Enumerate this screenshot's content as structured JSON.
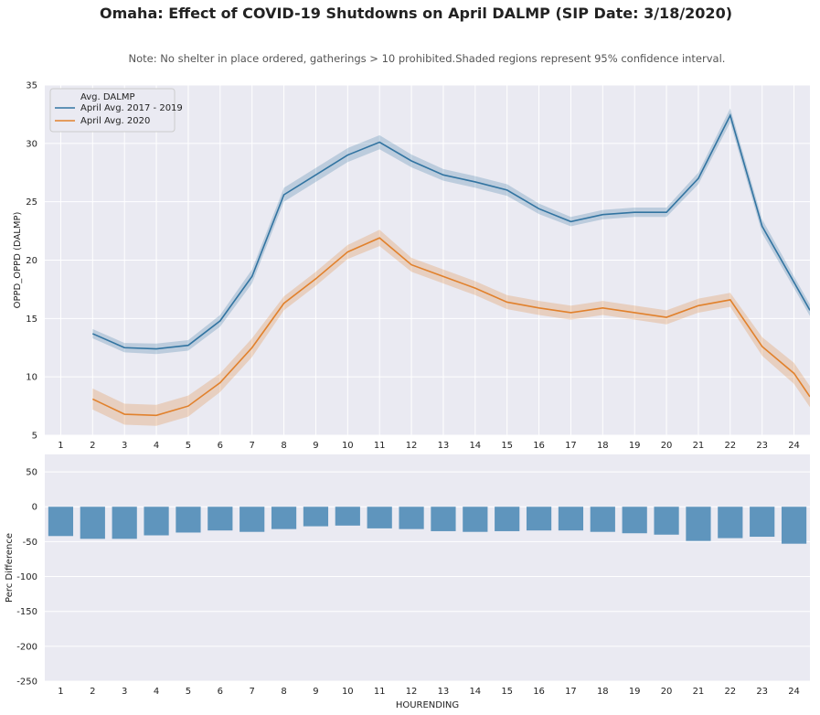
{
  "title": "Omaha: Effect of COVID-19 Shutdowns on April DALMP (SIP Date: 3/18/2020)",
  "note": "Note: No shelter in place ordered, gatherings > 10 prohibited.Shaded regions represent 95% confidence interval.",
  "chart_data": [
    {
      "type": "line",
      "ylabel": "OPPD_OPPD (DALMP)",
      "xlabel": "",
      "ylim": [
        5,
        35
      ],
      "yticks": [
        5,
        10,
        15,
        20,
        25,
        30,
        35
      ],
      "xticks": [
        1,
        2,
        3,
        4,
        5,
        6,
        7,
        8,
        9,
        10,
        11,
        12,
        13,
        14,
        15,
        16,
        17,
        18,
        19,
        20,
        21,
        22,
        23,
        24
      ],
      "grid": true,
      "legend": {
        "title": "Avg. DALMP",
        "placement": "top-left",
        "entries": [
          "April Avg. 2017 - 2019",
          "April Avg. 2020"
        ]
      },
      "series": [
        {
          "name": "April Avg. 2017 - 2019",
          "color": "#3274a1",
          "x": [
            2,
            3,
            4,
            5,
            6,
            7,
            8,
            9,
            10,
            11,
            12,
            13,
            14,
            15,
            16,
            17,
            18,
            19,
            20,
            21,
            22,
            23,
            24,
            24.5
          ],
          "values": [
            13.7,
            12.5,
            12.4,
            12.7,
            14.8,
            18.6,
            25.6,
            27.3,
            29.0,
            30.1,
            28.5,
            27.3,
            26.7,
            26.0,
            24.4,
            23.3,
            23.9,
            24.1,
            24.1,
            27.0,
            32.4,
            22.9,
            18.1,
            15.7
          ],
          "ci": [
            0.4,
            0.4,
            0.45,
            0.45,
            0.5,
            0.6,
            0.6,
            0.6,
            0.6,
            0.6,
            0.55,
            0.5,
            0.5,
            0.5,
            0.45,
            0.4,
            0.4,
            0.4,
            0.4,
            0.5,
            0.6,
            0.6,
            0.5,
            0.5
          ]
        },
        {
          "name": "April Avg. 2020",
          "color": "#e1812c",
          "x": [
            2,
            3,
            4,
            5,
            6,
            7,
            8,
            9,
            10,
            11,
            12,
            13,
            14,
            15,
            16,
            17,
            18,
            19,
            20,
            21,
            22,
            23,
            24,
            24.5
          ],
          "values": [
            8.1,
            6.8,
            6.7,
            7.5,
            9.5,
            12.5,
            16.3,
            18.4,
            20.7,
            21.9,
            19.6,
            18.6,
            17.6,
            16.4,
            15.9,
            15.5,
            15.9,
            15.5,
            15.1,
            16.1,
            16.6,
            12.6,
            10.3,
            8.3
          ],
          "ci": [
            0.9,
            0.9,
            0.9,
            0.9,
            0.8,
            0.8,
            0.6,
            0.6,
            0.6,
            0.7,
            0.6,
            0.6,
            0.6,
            0.6,
            0.6,
            0.6,
            0.6,
            0.6,
            0.6,
            0.6,
            0.6,
            0.8,
            0.9,
            0.9
          ]
        }
      ]
    },
    {
      "type": "bar",
      "xlabel": "HOURENDING",
      "ylabel": "Perc Difference",
      "ylim": [
        -250,
        75
      ],
      "yticks": [
        -250,
        -200,
        -150,
        -100,
        -50,
        0,
        50
      ],
      "categories": [
        "1",
        "2",
        "3",
        "4",
        "5",
        "6",
        "7",
        "8",
        "9",
        "10",
        "11",
        "12",
        "13",
        "14",
        "15",
        "16",
        "17",
        "18",
        "19",
        "20",
        "21",
        "22",
        "23",
        "24"
      ],
      "values": [
        -42,
        -46,
        -46,
        -41,
        -37,
        -34,
        -36,
        -32,
        -28,
        -27,
        -31,
        -32,
        -35,
        -36,
        -35,
        -34,
        -34,
        -36,
        -38,
        -40,
        -49,
        -45,
        -43,
        -53
      ],
      "color": "#5f95bd",
      "grid": true
    }
  ]
}
